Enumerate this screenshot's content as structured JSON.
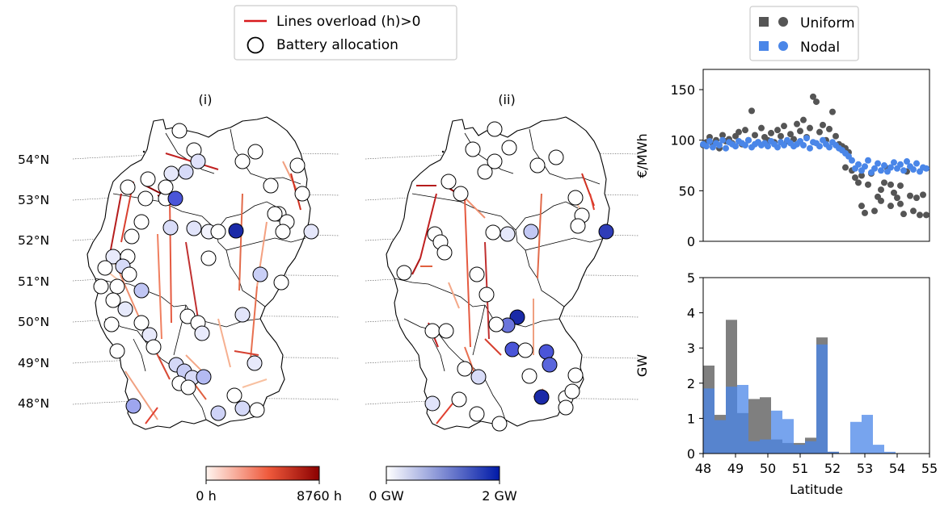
{
  "legend_left": {
    "line_label": "Lines overload (h)>0",
    "circle_label": "Battery allocation",
    "line_color": "#d7191c"
  },
  "legend_right": {
    "uniform_label": "Uniform",
    "nodal_label": "Nodal",
    "uniform_color": "#555555",
    "nodal_color": "#4a86e8"
  },
  "maps": {
    "panel_i_title": "(i)",
    "panel_ii_title": "(ii)",
    "lat_labels": [
      "54°N",
      "53°N",
      "52°N",
      "51°N",
      "50°N",
      "49°N",
      "48°N"
    ],
    "colorbar_overload": {
      "min_label": "0 h",
      "max_label": "8760 h",
      "low": "#fff5f0",
      "mid": "#ef5a3c",
      "high": "#8b0000"
    },
    "colorbar_battery": {
      "min_label": "0 GW",
      "max_label": "2 GW",
      "low": "#ffffff",
      "high": "#001aa8"
    }
  },
  "chart_data": [
    {
      "type": "scatter",
      "ylabel": "€/MWh",
      "ylim": [
        0,
        170
      ],
      "yticks": [
        "0",
        "50",
        "100",
        "150"
      ],
      "xlim": [
        48,
        55
      ],
      "series": [
        {
          "name": "Uniform",
          "points": [
            [
              48.0,
              95
            ],
            [
              48.1,
              98
            ],
            [
              48.2,
              103
            ],
            [
              48.3,
              96
            ],
            [
              48.4,
              100
            ],
            [
              48.5,
              92
            ],
            [
              48.6,
              105
            ],
            [
              48.7,
              99
            ],
            [
              48.8,
              101
            ],
            [
              48.9,
              97
            ],
            [
              49.0,
              104
            ],
            [
              49.1,
              108
            ],
            [
              49.2,
              96
            ],
            [
              49.3,
              110
            ],
            [
              49.4,
              100
            ],
            [
              49.5,
              129
            ],
            [
              49.6,
              105
            ],
            [
              49.7,
              98
            ],
            [
              49.8,
              112
            ],
            [
              49.9,
              103
            ],
            [
              50.0,
              100
            ],
            [
              50.1,
              107
            ],
            [
              50.2,
              98
            ],
            [
              50.3,
              110
            ],
            [
              50.4,
              104
            ],
            [
              50.5,
              114
            ],
            [
              50.6,
              99
            ],
            [
              50.7,
              106
            ],
            [
              50.8,
              101
            ],
            [
              50.9,
              116
            ],
            [
              51.0,
              109
            ],
            [
              51.1,
              120
            ],
            [
              51.2,
              103
            ],
            [
              51.3,
              112
            ],
            [
              51.4,
              143
            ],
            [
              51.5,
              138
            ],
            [
              51.6,
              108
            ],
            [
              51.7,
              115
            ],
            [
              51.8,
              100
            ],
            [
              51.9,
              111
            ],
            [
              52.0,
              128
            ],
            [
              52.1,
              104
            ],
            [
              52.2,
              96
            ],
            [
              52.3,
              94
            ],
            [
              52.4,
              92
            ],
            [
              52.5,
              88
            ],
            [
              52.6,
              70
            ],
            [
              52.7,
              63
            ],
            [
              52.8,
              58
            ],
            [
              52.9,
              65
            ],
            [
              53.0,
              28
            ],
            [
              53.1,
              56
            ],
            [
              53.2,
              67
            ],
            [
              53.3,
              30
            ],
            [
              53.4,
              44
            ],
            [
              53.5,
              51
            ],
            [
              53.6,
              58
            ],
            [
              53.7,
              72
            ],
            [
              53.8,
              35
            ],
            [
              53.9,
              48
            ],
            [
              54.0,
              43
            ],
            [
              54.1,
              55
            ],
            [
              54.2,
              27
            ],
            [
              54.3,
              69
            ],
            [
              54.4,
              45
            ],
            [
              54.5,
              30
            ],
            [
              54.6,
              43
            ],
            [
              54.7,
              26
            ],
            [
              54.8,
              46
            ],
            [
              54.9,
              26
            ],
            [
              52.4,
              73
            ],
            [
              52.9,
              35
            ],
            [
              53.5,
              40
            ],
            [
              53.8,
              56
            ],
            [
              54.1,
              37
            ]
          ]
        },
        {
          "name": "Nodal",
          "points": [
            [
              48.0,
              96
            ],
            [
              48.1,
              94
            ],
            [
              48.2,
              99
            ],
            [
              48.3,
              93
            ],
            [
              48.4,
              97
            ],
            [
              48.5,
              95
            ],
            [
              48.6,
              100
            ],
            [
              48.7,
              92
            ],
            [
              48.8,
              98
            ],
            [
              48.9,
              96
            ],
            [
              49.0,
              94
            ],
            [
              49.1,
              99
            ],
            [
              49.2,
              97
            ],
            [
              49.3,
              95
            ],
            [
              49.4,
              100
            ],
            [
              49.5,
              93
            ],
            [
              49.6,
              96
            ],
            [
              49.7,
              98
            ],
            [
              49.8,
              95
            ],
            [
              49.9,
              97
            ],
            [
              50.0,
              94
            ],
            [
              50.1,
              99
            ],
            [
              50.2,
              96
            ],
            [
              50.3,
              93
            ],
            [
              50.4,
              98
            ],
            [
              50.5,
              95
            ],
            [
              50.6,
              100
            ],
            [
              50.7,
              97
            ],
            [
              50.8,
              94
            ],
            [
              50.9,
              96
            ],
            [
              51.0,
              99
            ],
            [
              51.1,
              95
            ],
            [
              51.2,
              102
            ],
            [
              51.3,
              92
            ],
            [
              51.4,
              98
            ],
            [
              51.5,
              97
            ],
            [
              51.6,
              94
            ],
            [
              51.7,
              100
            ],
            [
              51.8,
              96
            ],
            [
              51.9,
              93
            ],
            [
              52.0,
              98
            ],
            [
              52.1,
              95
            ],
            [
              52.2,
              92
            ],
            [
              52.3,
              90
            ],
            [
              52.4,
              87
            ],
            [
              52.5,
              84
            ],
            [
              52.6,
              80
            ],
            [
              52.7,
              72
            ],
            [
              52.8,
              76
            ],
            [
              52.9,
              70
            ],
            [
              53.0,
              74
            ],
            [
              53.1,
              80
            ],
            [
              53.2,
              68
            ],
            [
              53.3,
              72
            ],
            [
              53.4,
              77
            ],
            [
              53.5,
              70
            ],
            [
              53.6,
              75
            ],
            [
              53.7,
              69
            ],
            [
              53.8,
              73
            ],
            [
              53.9,
              78
            ],
            [
              54.0,
              72
            ],
            [
              54.1,
              76
            ],
            [
              54.2,
              70
            ],
            [
              54.3,
              79
            ],
            [
              54.4,
              74
            ],
            [
              54.5,
              71
            ],
            [
              54.6,
              77
            ],
            [
              54.7,
              69
            ],
            [
              54.8,
              73
            ],
            [
              54.9,
              72
            ]
          ]
        }
      ]
    },
    {
      "type": "bar",
      "xlabel": "Latitude",
      "ylabel": "GW",
      "ylim": [
        0,
        5
      ],
      "yticks": [
        "0",
        "1",
        "2",
        "3",
        "4",
        "5"
      ],
      "xlim": [
        48,
        55
      ],
      "xticks": [
        "48",
        "49",
        "50",
        "51",
        "52",
        "53",
        "54",
        "55"
      ],
      "bin_width": 0.35,
      "bin_start": 48,
      "series": [
        {
          "name": "Uniform",
          "values": [
            2.5,
            1.1,
            3.8,
            1.15,
            1.55,
            1.6,
            0.4,
            0.3,
            0.3,
            0.45,
            3.3,
            0.05,
            0.0,
            0.0,
            0.0,
            0.0,
            0.0,
            0.0,
            0.0,
            0.0
          ]
        },
        {
          "name": "Nodal",
          "values": [
            1.85,
            0.95,
            1.9,
            1.95,
            0.35,
            0.4,
            1.22,
            0.98,
            0.25,
            0.35,
            3.1,
            0.05,
            0.0,
            0.9,
            1.1,
            0.25,
            0.05,
            0.0,
            0.0,
            0.0
          ]
        }
      ]
    }
  ]
}
